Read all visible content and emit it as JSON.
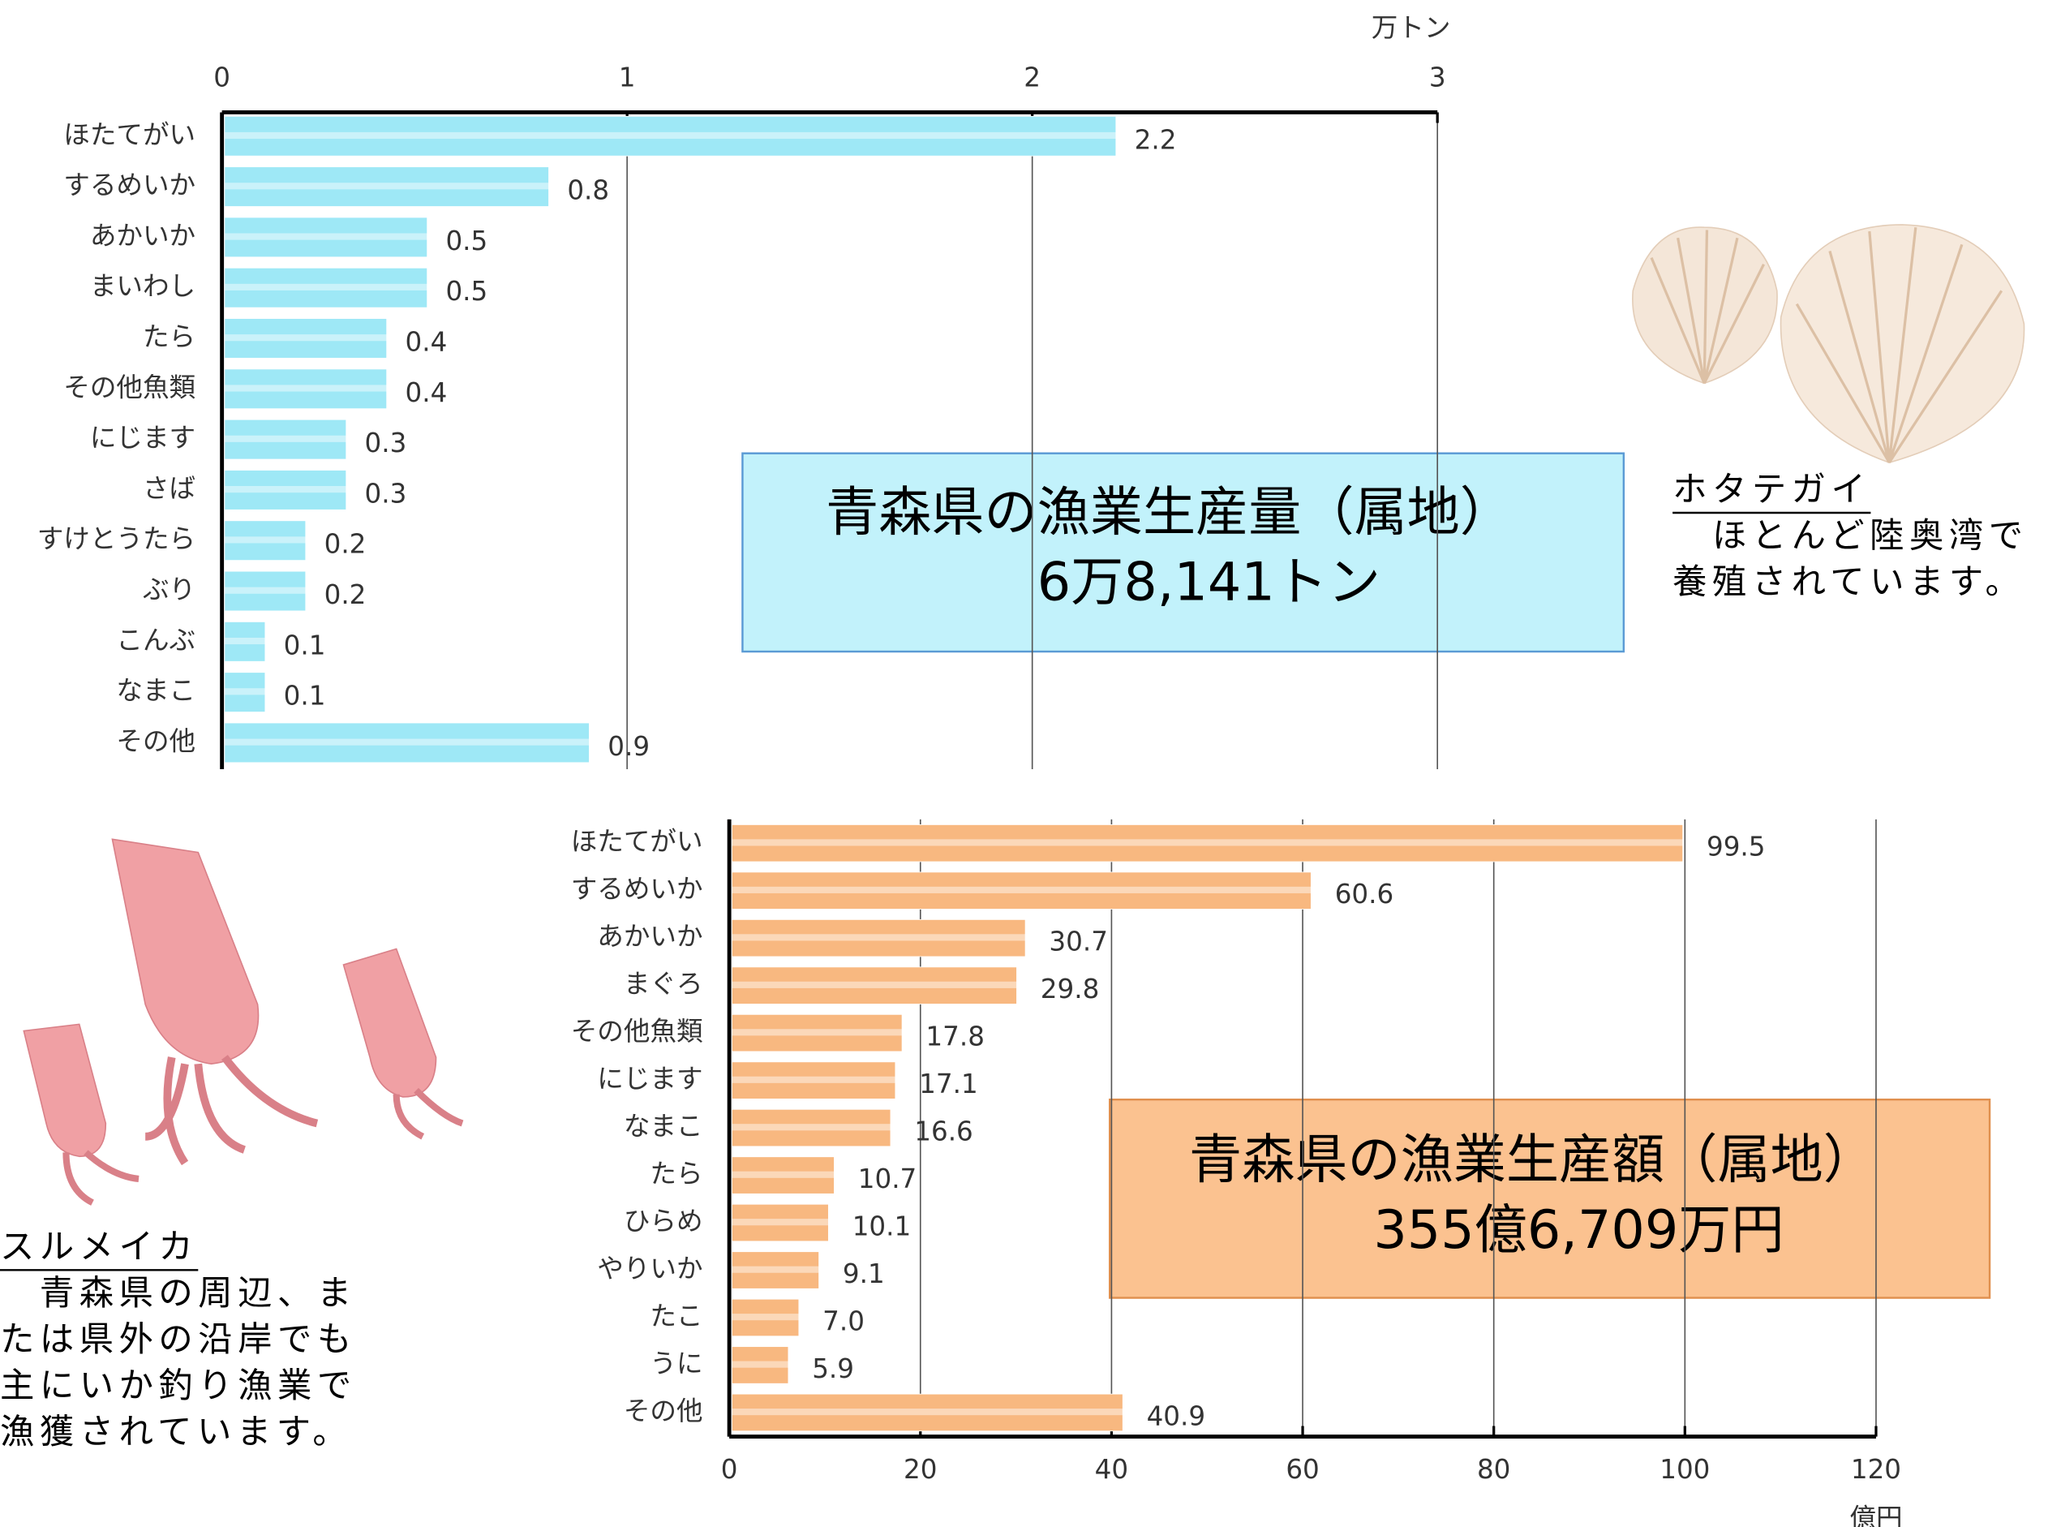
{
  "chart_data": [
    {
      "type": "bar",
      "orientation": "horizontal",
      "title": "青森県の漁業生産量（属地）",
      "subtitle": "6万8,141トン",
      "x_axis_label": "万トン",
      "categories": [
        "ほたてがい",
        "するめいか",
        "あかいか",
        "まいわし",
        "たら",
        "その他魚類",
        "にじます",
        "さば",
        "すけとうたら",
        "ぶり",
        "こんぶ",
        "なまこ",
        "その他"
      ],
      "values": [
        2.2,
        0.8,
        0.5,
        0.5,
        0.4,
        0.4,
        0.3,
        0.3,
        0.2,
        0.2,
        0.1,
        0.1,
        0.9
      ],
      "color": "#9ee8f6",
      "xlim": [
        0,
        3
      ],
      "xticks": [
        0,
        1,
        2,
        3
      ],
      "grid": true
    },
    {
      "type": "bar",
      "orientation": "horizontal",
      "title": "青森県の漁業生産額（属地）",
      "subtitle": "355億6,709万円",
      "x_axis_label": "億円",
      "categories": [
        "ほたてがい",
        "するめいか",
        "あかいか",
        "まぐろ",
        "その他魚類",
        "にじます",
        "なまこ",
        "たら",
        "ひらめ",
        "やりいか",
        "たこ",
        "うに",
        "その他"
      ],
      "values": [
        99.5,
        60.6,
        30.7,
        29.8,
        17.8,
        17.1,
        16.6,
        10.7,
        10.1,
        9.1,
        7.0,
        5.9,
        40.9
      ],
      "value_labels": [
        "99.5",
        "60.6",
        "30.7",
        "29.8",
        "17.8",
        "17.1",
        "16.6",
        "10.7",
        "10.1",
        "9.1",
        "7.0",
        "5.9",
        "40.9"
      ],
      "color": "#f8b880",
      "xlim": [
        0,
        120
      ],
      "xticks": [
        0,
        20,
        40,
        60,
        80,
        100,
        120
      ],
      "grid": true
    }
  ],
  "captions": [
    {
      "title": "ホタテガイ",
      "lines": [
        "　ほとんど陸奥湾で",
        "養殖されています。"
      ]
    },
    {
      "title": "スルメイカ",
      "lines": [
        "　青森県の周辺、ま",
        "たは県外の沿岸でも",
        "主にいか釣り漁業で",
        "漁獲されています。"
      ]
    }
  ]
}
